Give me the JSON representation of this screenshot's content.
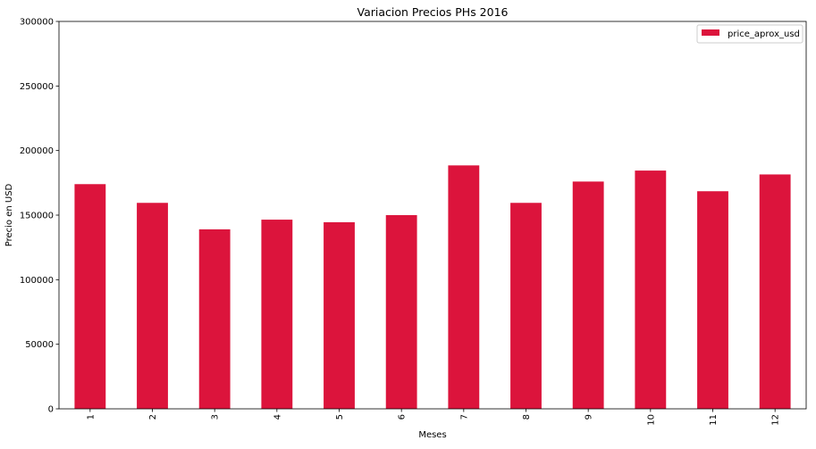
{
  "chart_data": {
    "type": "bar",
    "title": "Variacion Precios PHs 2016",
    "xlabel": "Meses",
    "ylabel": "Precio en USD",
    "categories": [
      "1",
      "2",
      "3",
      "4",
      "5",
      "6",
      "7",
      "8",
      "9",
      "10",
      "11",
      "12"
    ],
    "series": [
      {
        "name": "price_aprox_usd",
        "color": "#dc143c",
        "values": [
          174000,
          159500,
          139000,
          146500,
          144500,
          150000,
          188500,
          159500,
          176000,
          184500,
          168500,
          181500
        ]
      }
    ],
    "ylim": [
      0,
      300000
    ],
    "yticks": [
      "0",
      "50000",
      "100000",
      "150000",
      "200000",
      "250000",
      "300000"
    ],
    "grid": false,
    "legend_position": "upper right"
  }
}
